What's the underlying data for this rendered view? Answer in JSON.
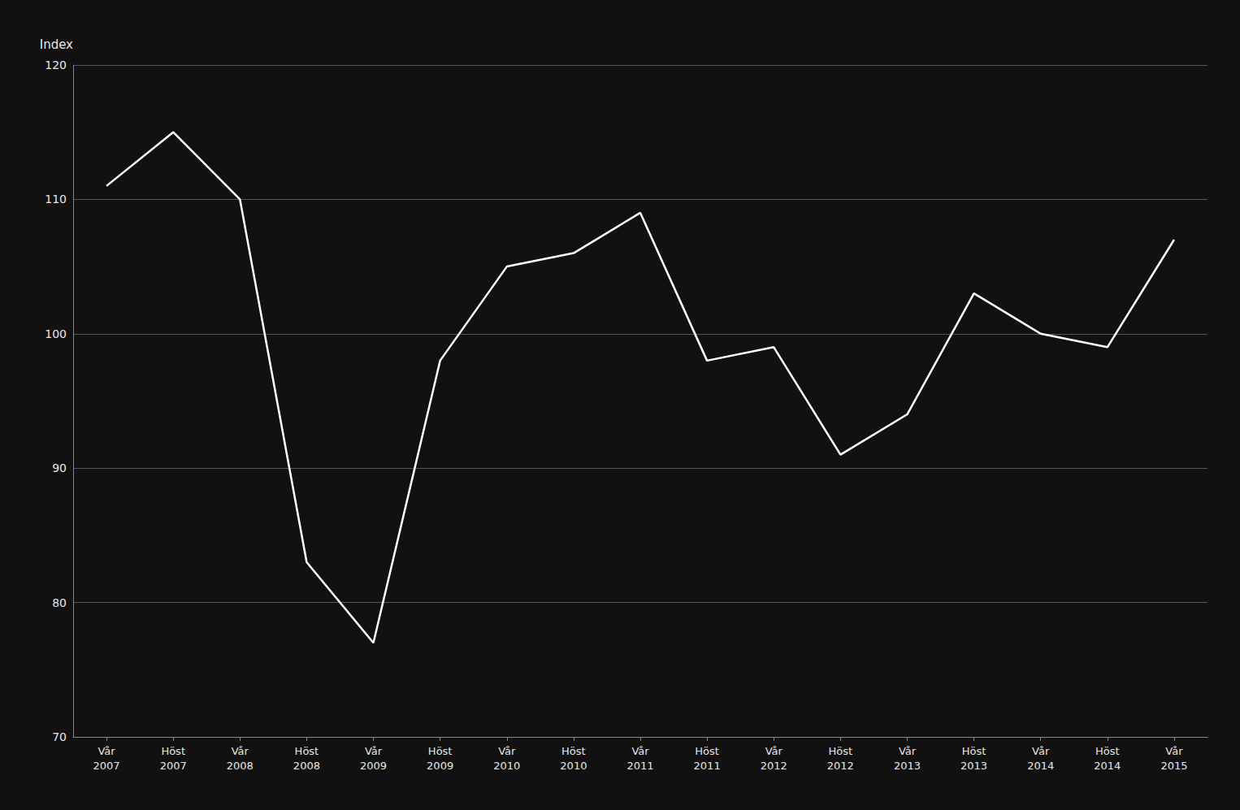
{
  "chart_data": {
    "type": "line",
    "y_label": "Index",
    "categories": [
      "Vår\n2007",
      "Höst\n2007",
      "Vår\n2008",
      "Höst\n2008",
      "Vår\n2009",
      "Höst\n2009",
      "Vår\n2010",
      "Höst\n2010",
      "Vår\n2011",
      "Höst\n2011",
      "Vår\n2012",
      "Höst\n2012",
      "Vår\n2013",
      "Höst\n2013",
      "Vår\n2014",
      "Höst\n2014",
      "Vår\n2015"
    ],
    "values": [
      111,
      115,
      110,
      83,
      77,
      98,
      105,
      106,
      109,
      98,
      99,
      91,
      94,
      103,
      100,
      99,
      107
    ],
    "color": "#ffffff",
    "ylim": [
      70,
      120
    ],
    "yticks": [
      70,
      80,
      90,
      100,
      110,
      120
    ],
    "grid": true
  }
}
